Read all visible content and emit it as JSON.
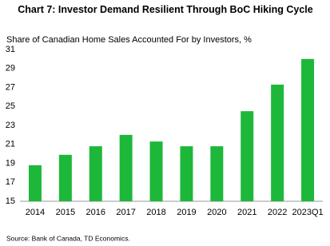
{
  "chart_data": {
    "type": "bar",
    "title": "Chart 7: Investor Demand Resilient Through BoC Hiking Cycle",
    "subtitle": "Share of Canadian Home Sales Accounted For by Investors, %",
    "source": "Source: Bank of Canada, TD Economics.",
    "categories": [
      "2014",
      "2015",
      "2016",
      "2017",
      "2018",
      "2019",
      "2020",
      "2021",
      "2022",
      "2023Q1"
    ],
    "values": [
      18.8,
      19.9,
      20.8,
      22.0,
      21.3,
      20.8,
      20.8,
      24.5,
      27.3,
      30.0
    ],
    "color": "#1db83a",
    "ylim": [
      15,
      31
    ],
    "yticks": [
      15,
      17,
      19,
      21,
      23,
      25,
      27,
      29,
      31
    ],
    "grid": false
  }
}
